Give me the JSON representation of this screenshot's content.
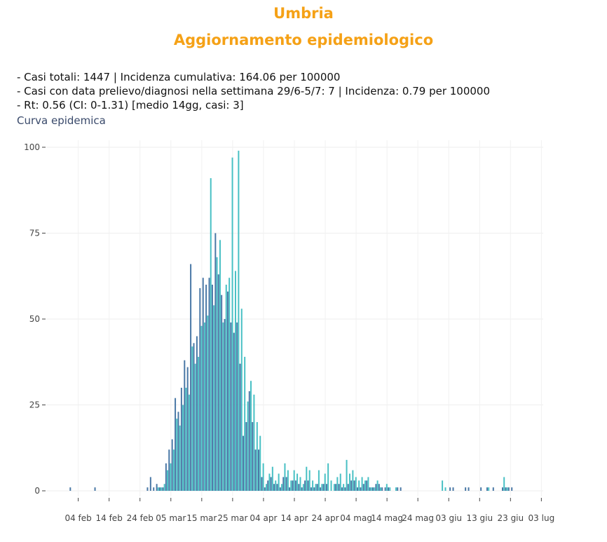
{
  "header": {
    "region": "Umbria",
    "title": "Aggiornamento epidemiologico"
  },
  "info_lines": [
    "- Casi totali: 1447 | Incidenza cumulativa: 164.06 per 100000",
    "- Casi con data prelievo/diagnosi nella settimana 29/6-5/7: 7 | Incidenza: 0.79 per 100000",
    "- Rt: 0.56 (CI: 0-1.31) [medio 14gg, casi: 3]"
  ],
  "subtitle": "Curva epidemica",
  "colors": {
    "title": "#f5a116",
    "series_a": "#4a78a6",
    "series_b": "#48c0c4"
  },
  "chart_data": {
    "type": "bar",
    "x_start": "2020-01-31",
    "ylim": [
      0,
      100
    ],
    "yticks": [
      0,
      25,
      50,
      75,
      100
    ],
    "xticks": [
      "04 feb",
      "14 feb",
      "24 feb",
      "05 mar",
      "15 mar",
      "25 mar",
      "04 apr",
      "14 apr",
      "24 apr",
      "04 mag",
      "14 mag",
      "24 mag",
      "03 giu",
      "13 giu",
      "23 giu",
      "03 lug"
    ],
    "grid": true,
    "series": [
      {
        "values": [
          0,
          1,
          0,
          0,
          0,
          0,
          0,
          0,
          0,
          1,
          0,
          0,
          0,
          0,
          0,
          0,
          0,
          0,
          0,
          0,
          0,
          0,
          0,
          0,
          0,
          0,
          1,
          4,
          1,
          2,
          1,
          1,
          8,
          12,
          15,
          27,
          23,
          30,
          38,
          36,
          66,
          43,
          45,
          59,
          62,
          60,
          62,
          60,
          75,
          63,
          57,
          50,
          58,
          49,
          46,
          49,
          37,
          16,
          20,
          29,
          20,
          12,
          12,
          4,
          1,
          3,
          4,
          2,
          2,
          1,
          4,
          4,
          1,
          3,
          3,
          2,
          1,
          3,
          3,
          1,
          1,
          2,
          1,
          2,
          2,
          0,
          0,
          2,
          2,
          1,
          1,
          2,
          3,
          3,
          1,
          1,
          2,
          3,
          1,
          1,
          2,
          2,
          1,
          1,
          1,
          0,
          0,
          1,
          1,
          0,
          0,
          0,
          0,
          0,
          0,
          0,
          0,
          0,
          0,
          0,
          0,
          0,
          0,
          0,
          1,
          1,
          0,
          0,
          0,
          1,
          1,
          0,
          0,
          0,
          1,
          0,
          1,
          0,
          1,
          0,
          0,
          1,
          1,
          1,
          1,
          0
        ]
      },
      {
        "values": [
          0,
          0,
          0,
          0,
          0,
          0,
          0,
          0,
          0,
          0,
          0,
          0,
          0,
          0,
          0,
          0,
          0,
          0,
          0,
          0,
          0,
          0,
          0,
          0,
          0,
          0,
          0,
          0,
          0,
          1,
          1,
          2,
          6,
          8,
          12,
          21,
          19,
          25,
          30,
          28,
          42,
          37,
          39,
          48,
          49,
          51,
          91,
          54,
          68,
          73,
          49,
          60,
          62,
          97,
          64,
          99,
          53,
          39,
          26,
          32,
          28,
          20,
          16,
          8,
          2,
          5,
          7,
          3,
          5,
          2,
          8,
          6,
          3,
          6,
          5,
          4,
          2,
          7,
          6,
          3,
          2,
          6,
          2,
          5,
          8,
          3,
          2,
          4,
          5,
          2,
          9,
          5,
          6,
          4,
          3,
          4,
          3,
          4,
          1,
          1,
          3,
          1,
          0,
          2,
          1,
          0,
          1,
          0,
          0,
          0,
          0,
          0,
          0,
          0,
          0,
          0,
          0,
          0,
          0,
          0,
          0,
          3,
          1,
          0,
          0,
          0,
          0,
          0,
          0,
          0,
          0,
          0,
          0,
          0,
          0,
          0,
          1,
          0,
          0,
          0,
          0,
          4,
          1,
          0,
          0,
          0
        ]
      }
    ]
  }
}
